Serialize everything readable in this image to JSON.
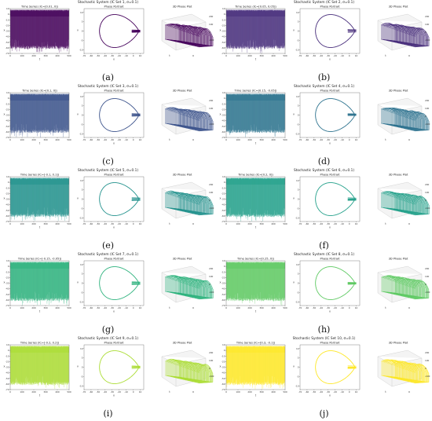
{
  "figure": {
    "panel_titles": {
      "time_series": "Time Series",
      "phase": "Phase Portrait",
      "plot3d": "3D Phase Plot"
    },
    "axis_labels": {
      "t": "t",
      "x": "x",
      "v": "v"
    },
    "time_ticks": [
      "0",
      "100",
      "200",
      "300",
      "400",
      "500"
    ],
    "value_ticks": [
      "-70",
      "-60",
      "-50",
      "-40",
      "-30",
      "-20",
      "-10",
      "0",
      "10"
    ],
    "phase_x_ticks": [
      "-70",
      "-60",
      "-50",
      "-40",
      "-30",
      "-20",
      "-10",
      "0",
      "10"
    ],
    "phase_y_ticks": [
      "-10",
      "-5",
      "0",
      "5",
      "10"
    ],
    "z_ticks": [
      "200",
      "100",
      "0",
      "-100"
    ]
  },
  "chart_data": [
    {
      "type": "line",
      "label": "(a)",
      "suptitle": "Stochastic System (IC Set 1, σ=0.1)",
      "ts_title": "Time Series (IC=[0.01, 0])",
      "color": "#44015a",
      "xlim": [
        0,
        500
      ],
      "ylim": [
        -70,
        10
      ]
    },
    {
      "type": "line",
      "label": "(b)",
      "suptitle": "Stochastic System (IC Set 2, σ=0.1)",
      "ts_title": "Time Series (IC=[0.05, 0.05])",
      "color": "#472d7b",
      "xlim": [
        0,
        500
      ],
      "ylim": [
        -70,
        10
      ]
    },
    {
      "type": "line",
      "label": "(c)",
      "suptitle": "Stochastic System (IC Set 3, σ=0.1)",
      "ts_title": "Time Series (IC=[0.1, 0])",
      "color": "#3b528b",
      "xlim": [
        0,
        500
      ],
      "ylim": [
        -70,
        10
      ]
    },
    {
      "type": "line",
      "label": "(d)",
      "suptitle": "Stochastic System (IC Set 4, σ=0.1)",
      "ts_title": "Time Series (IC=[0.15, -0.05])",
      "color": "#2c728e",
      "xlim": [
        0,
        500
      ],
      "ylim": [
        -70,
        10
      ]
    },
    {
      "type": "line",
      "label": "(e)",
      "suptitle": "Stochastic System (IC Set 5, σ=0.1)",
      "ts_title": "Time Series (IC=[-0.1, 0.1])",
      "color": "#21918c",
      "xlim": [
        0,
        500
      ],
      "ylim": [
        -70,
        10
      ]
    },
    {
      "type": "line",
      "label": "(f)",
      "suptitle": "Stochastic System (IC Set 6, σ=0.1)",
      "ts_title": "Time Series (IC=[0.2, 0])",
      "color": "#23a08a",
      "xlim": [
        0,
        500
      ],
      "ylim": [
        -70,
        10
      ]
    },
    {
      "type": "line",
      "label": "(g)",
      "suptitle": "Stochastic System (IC Set 7, σ=0.1)",
      "ts_title": "Time Series (IC=[-0.15, -0.05])",
      "color": "#2db27d",
      "xlim": [
        0,
        500
      ],
      "ylim": [
        -70,
        10
      ]
    },
    {
      "type": "line",
      "label": "(h)",
      "suptitle": "Stochastic System (IC Set 8, σ=0.1)",
      "ts_title": "Time Series (IC=[0.25, 0])",
      "color": "#5ec962",
      "xlim": [
        0,
        500
      ],
      "ylim": [
        -70,
        10
      ]
    },
    {
      "type": "line",
      "label": "(i)",
      "suptitle": "Stochastic System (IC Set 9, σ=0.1)",
      "ts_title": "Time Series (IC=[-0.2, 0.2])",
      "color": "#aadc32",
      "xlim": [
        0,
        500
      ],
      "ylim": [
        -70,
        10
      ]
    },
    {
      "type": "line",
      "label": "(j)",
      "suptitle": "Stochastic System (IC Set 10, σ=0.1)",
      "ts_title": "Time Series (IC=[0.3, -0.1])",
      "color": "#fde725",
      "xlim": [
        0,
        500
      ],
      "ylim": [
        -70,
        10
      ]
    }
  ]
}
